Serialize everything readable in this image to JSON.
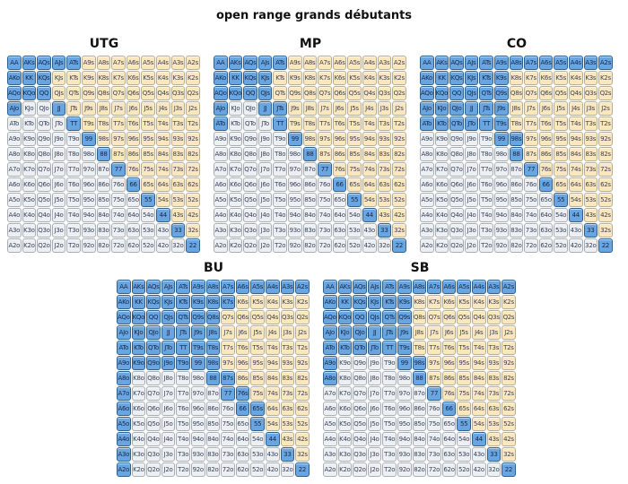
{
  "title": "open range grands débutants",
  "colors": {
    "in_range_fill": "#69a5e1",
    "in_range_border": "#2f618f",
    "suited_fill": "#fbe7be",
    "offsuit_fill": "#edf0f3",
    "cell_border": "#a8aeb5",
    "text": "#14294a",
    "background": "#ffffff"
  },
  "chart_data": {
    "type": "heatmap",
    "title": "open range grands débutants",
    "row_col_ranks": [
      "A",
      "K",
      "Q",
      "J",
      "T",
      "9",
      "8",
      "7",
      "6",
      "5",
      "4",
      "3",
      "2"
    ],
    "cell_scheme": {
      "diagonal": "pairs",
      "upper_triangle": "suited (s)",
      "lower_triangle": "offsuit (o)",
      "highlight_meaning": "hand is in opening range"
    },
    "boards": [
      {
        "label": "UTG",
        "open_range": [
          "AA",
          "KK",
          "QQ",
          "JJ",
          "TT",
          "99",
          "88",
          "77",
          "66",
          "55",
          "44",
          "33",
          "22",
          "AKs",
          "AQs",
          "AJs",
          "ATs",
          "KQs",
          "AKo",
          "AQo",
          "AJo",
          "KQo"
        ]
      },
      {
        "label": "MP",
        "open_range": [
          "AA",
          "KK",
          "QQ",
          "JJ",
          "TT",
          "99",
          "88",
          "77",
          "66",
          "55",
          "44",
          "33",
          "22",
          "AKs",
          "AQs",
          "AJs",
          "ATs",
          "KQs",
          "KJs",
          "QJs",
          "JTs",
          "AKo",
          "AQo",
          "AJo",
          "ATo",
          "KQo"
        ]
      },
      {
        "label": "CO",
        "open_range": [
          "AA",
          "KK",
          "QQ",
          "JJ",
          "TT",
          "99",
          "88",
          "77",
          "66",
          "55",
          "44",
          "33",
          "22",
          "AKs",
          "AQs",
          "AJs",
          "ATs",
          "A9s",
          "A8s",
          "A7s",
          "A6s",
          "A5s",
          "A4s",
          "A3s",
          "A2s",
          "KQs",
          "KJs",
          "KTs",
          "K9s",
          "QJs",
          "QTs",
          "Q9s",
          "JTs",
          "J9s",
          "T9s",
          "98s",
          "AKo",
          "AQo",
          "AJo",
          "ATo",
          "KQo",
          "KJo",
          "KTo",
          "QJo",
          "QTo",
          "JTo"
        ]
      },
      {
        "label": "BU",
        "open_range": [
          "AA",
          "KK",
          "QQ",
          "JJ",
          "TT",
          "99",
          "88",
          "77",
          "66",
          "55",
          "44",
          "33",
          "22",
          "AKs",
          "AQs",
          "AJs",
          "ATs",
          "A9s",
          "A8s",
          "A7s",
          "A6s",
          "A5s",
          "A4s",
          "A3s",
          "A2s",
          "KQs",
          "KJs",
          "KTs",
          "K9s",
          "K8s",
          "K7s",
          "QJs",
          "QTs",
          "Q9s",
          "Q8s",
          "JTs",
          "J9s",
          "J8s",
          "T9s",
          "T8s",
          "98s",
          "87s",
          "76s",
          "65s",
          "AKo",
          "AQo",
          "AJo",
          "ATo",
          "A9o",
          "A8o",
          "A7o",
          "A6o",
          "A5o",
          "A4o",
          "A3o",
          "A2o",
          "KQo",
          "KJo",
          "KTo",
          "K9o",
          "QJo",
          "QTo",
          "Q9o",
          "JTo",
          "J9o",
          "T9o"
        ]
      },
      {
        "label": "SB",
        "open_range": [
          "AA",
          "KK",
          "QQ",
          "JJ",
          "TT",
          "99",
          "88",
          "77",
          "66",
          "55",
          "44",
          "33",
          "22",
          "AKs",
          "AQs",
          "AJs",
          "ATs",
          "A9s",
          "A8s",
          "A7s",
          "A6s",
          "A5s",
          "A4s",
          "A3s",
          "A2s",
          "KQs",
          "KJs",
          "KTs",
          "K9s",
          "QJs",
          "QTs",
          "Q9s",
          "JTs",
          "J9s",
          "T9s",
          "98s",
          "AKo",
          "AQo",
          "AJo",
          "ATo",
          "A9o",
          "A8o",
          "KQo",
          "KJo",
          "KTo",
          "QJo",
          "QTo",
          "JTo"
        ]
      }
    ]
  }
}
